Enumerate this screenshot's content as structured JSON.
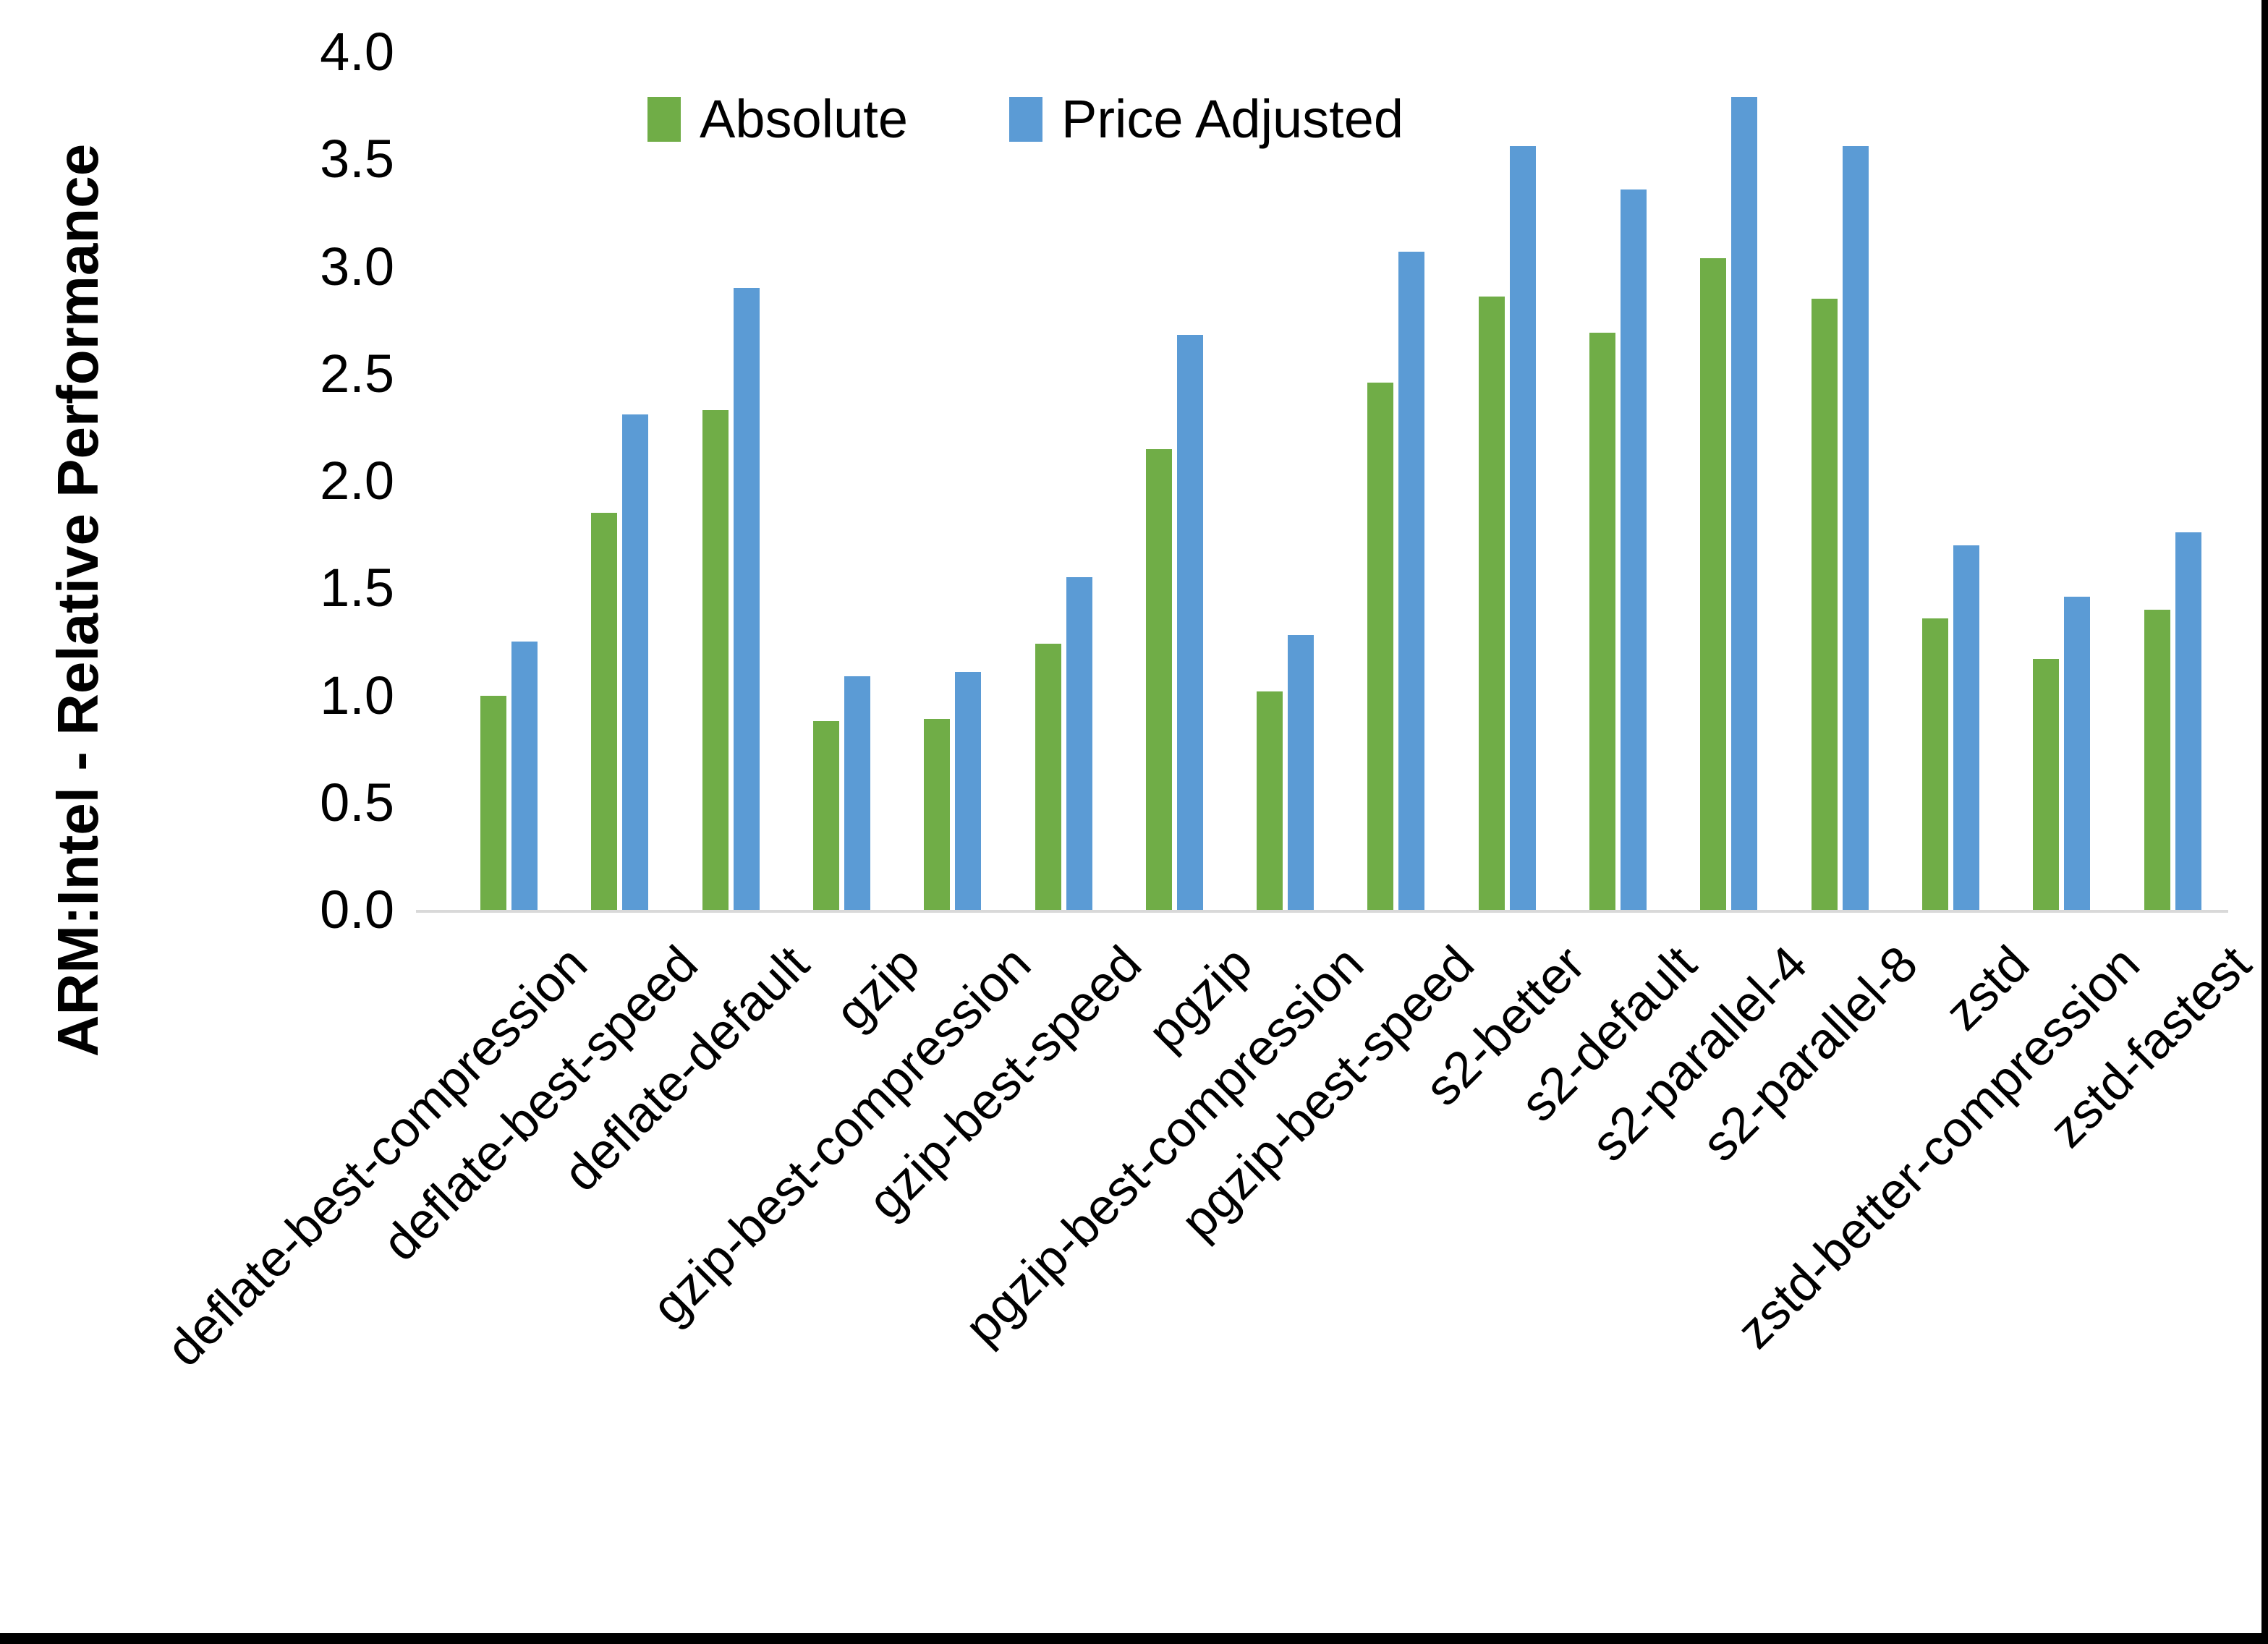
{
  "chart_data": {
    "type": "bar",
    "title": "",
    "xlabel": "",
    "ylabel": "ARM:Intel - Relative Performance",
    "ylim": [
      0.0,
      4.0
    ],
    "ytick_step": 0.5,
    "ytick_decimals": 1,
    "grid": false,
    "legend_position": "top-center",
    "axis_line_color": "#d9d9d9",
    "background_color": "#ffffff",
    "text_color": "#000000",
    "categories": [
      "deflate-best-compression",
      "deflate-best-speed",
      "deflate-default",
      "gzip",
      "gzip-best-compression",
      "gzip-best-speed",
      "pgzip",
      "pgzip-best-compression",
      "pgzip-best-speed",
      "s2-better",
      "s2-default",
      "s2-parallel-4",
      "s2-parallel-8",
      "zstd",
      "zstd-better-compression",
      "zstd-fastest"
    ],
    "series": [
      {
        "name": "Absolute",
        "color": "#70AD47",
        "values": [
          1.0,
          1.85,
          2.33,
          0.88,
          0.89,
          1.24,
          2.15,
          1.02,
          2.46,
          2.86,
          2.69,
          3.04,
          2.85,
          1.36,
          1.17,
          1.4
        ]
      },
      {
        "name": "Price Adjusted",
        "color": "#5B9BD5",
        "values": [
          1.25,
          2.31,
          2.9,
          1.09,
          1.11,
          1.55,
          2.68,
          1.28,
          3.07,
          3.56,
          3.36,
          3.79,
          3.56,
          1.7,
          1.46,
          1.76
        ]
      }
    ]
  }
}
